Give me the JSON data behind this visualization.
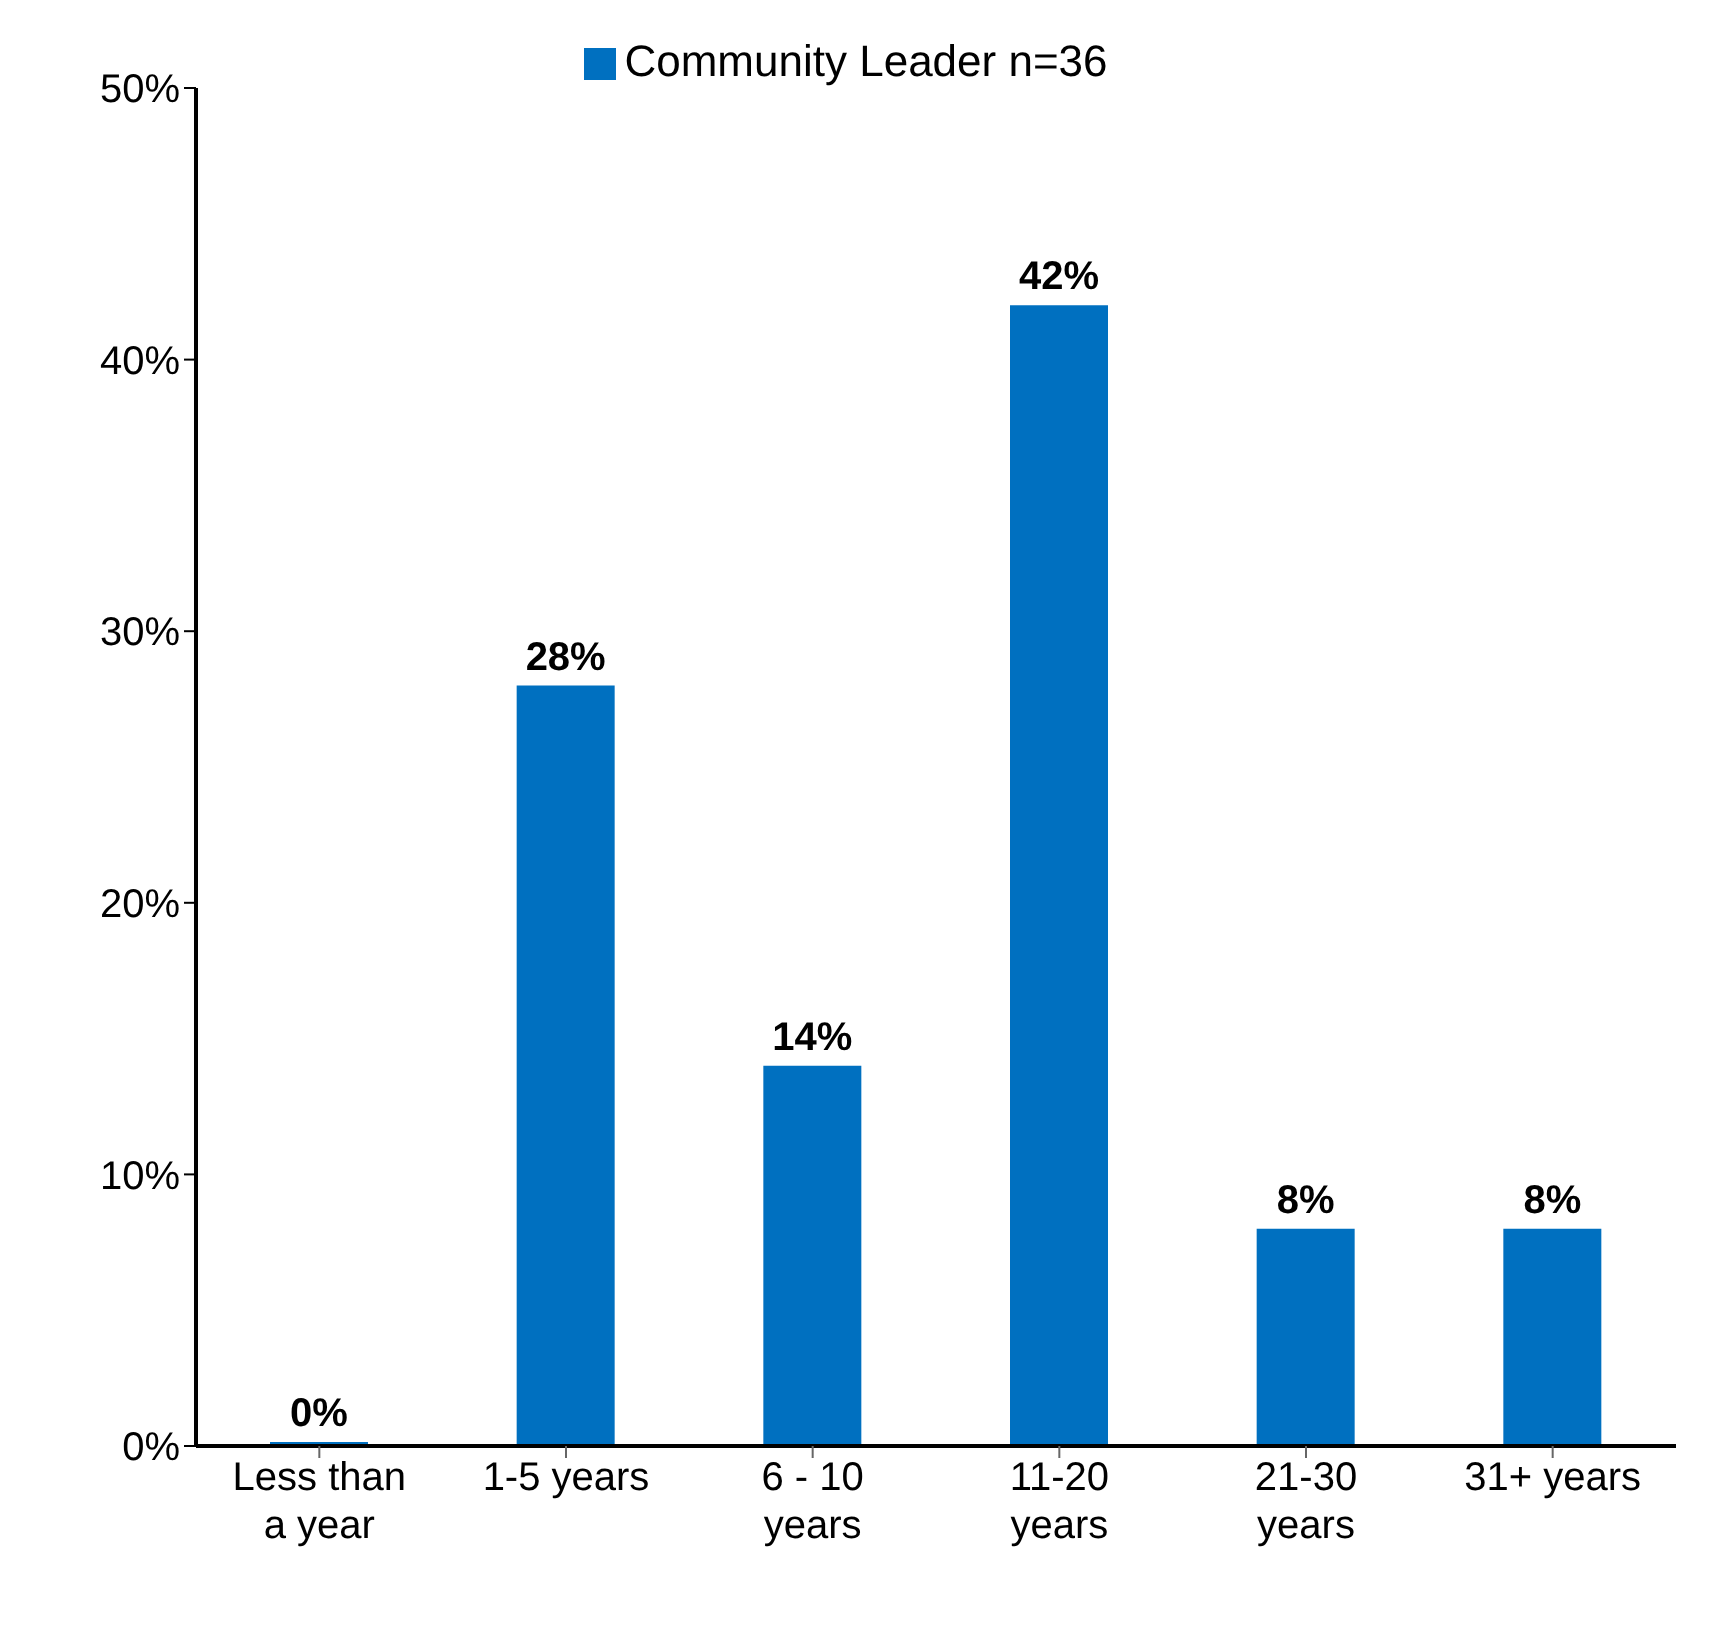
{
  "chart_data": {
    "type": "bar",
    "categories": [
      "Less than a year",
      "1-5 years",
      "6 - 10 years",
      "11-20 years",
      "21-30 years",
      "31+ years"
    ],
    "series": [
      {
        "name": "Community Leader n=36",
        "color": "#0070c0",
        "values": [
          0,
          28,
          14,
          42,
          8,
          8
        ],
        "value_labels": [
          "0%",
          "28%",
          "14%",
          "42%",
          "8%",
          "8%"
        ]
      }
    ],
    "ylim": [
      0,
      50
    ],
    "yticks": [
      {
        "value": 0,
        "label": "0%"
      },
      {
        "value": 10,
        "label": "10%"
      },
      {
        "value": 20,
        "label": "20%"
      },
      {
        "value": 30,
        "label": "30%"
      },
      {
        "value": 40,
        "label": "40%"
      },
      {
        "value": 50,
        "label": "50%"
      }
    ],
    "grid": false,
    "legend": "top"
  }
}
